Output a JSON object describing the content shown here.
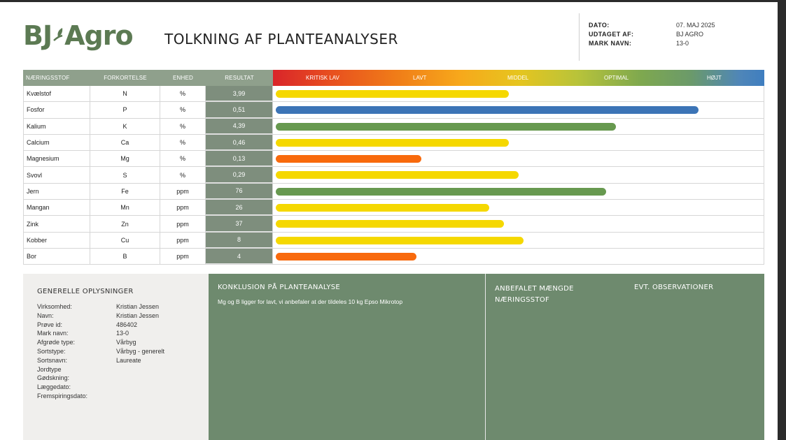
{
  "header": {
    "logo": "BJ Agro",
    "title": "TOLKNING AF PLANTEANALYSER"
  },
  "meta": [
    {
      "label": "DATO:",
      "value": "07. MAJ 2025"
    },
    {
      "label": "UDTAGET AF:",
      "value": "BJ AGRO"
    },
    {
      "label": "MARK NAVN:",
      "value": "13-0"
    }
  ],
  "table": {
    "headers": [
      "NÆRINGSSTOF",
      "FORKORTELSE",
      "ENHED",
      "RESULTAT"
    ],
    "scale_labels": [
      "KRITISK LAV",
      "LAVT",
      "MIDDEL",
      "OPTIMAL",
      "HØJT"
    ],
    "rows": [
      {
        "name": "Kvælstof",
        "abbr": "N",
        "unit": "%",
        "result": "3,99",
        "level": 0.48,
        "color": "#f5d800"
      },
      {
        "name": "Fosfor",
        "abbr": "P",
        "unit": "%",
        "result": "0,51",
        "level": 0.87,
        "color": "#3c74b6"
      },
      {
        "name": "Kalium",
        "abbr": "K",
        "unit": "%",
        "result": "4,39",
        "level": 0.7,
        "color": "#67994f"
      },
      {
        "name": "Calcium",
        "abbr": "Ca",
        "unit": "%",
        "result": "0,46",
        "level": 0.48,
        "color": "#f5d800"
      },
      {
        "name": "Magnesium",
        "abbr": "Mg",
        "unit": "%",
        "result": "0,13",
        "level": 0.3,
        "color": "#f86a0d"
      },
      {
        "name": "Svovl",
        "abbr": "S",
        "unit": "%",
        "result": "0,29",
        "level": 0.5,
        "color": "#f5d800"
      },
      {
        "name": "Jern",
        "abbr": "Fe",
        "unit": "ppm",
        "result": "76",
        "level": 0.68,
        "color": "#67994f"
      },
      {
        "name": "Mangan",
        "abbr": "Mn",
        "unit": "ppm",
        "result": "26",
        "level": 0.44,
        "color": "#f5d800"
      },
      {
        "name": "Zink",
        "abbr": "Zn",
        "unit": "ppm",
        "result": "37",
        "level": 0.47,
        "color": "#f5d800"
      },
      {
        "name": "Kobber",
        "abbr": "Cu",
        "unit": "ppm",
        "result": "8",
        "level": 0.51,
        "color": "#f5d800"
      },
      {
        "name": "Bor",
        "abbr": "B",
        "unit": "ppm",
        "result": "4",
        "level": 0.29,
        "color": "#f86a0d"
      }
    ]
  },
  "general": {
    "heading": "GENERELLE OPLYSNINGER",
    "fields": [
      {
        "label": "Virksomhed:",
        "value": "Kristian Jessen"
      },
      {
        "label": "Navn:",
        "value": "Kristian Jessen"
      },
      {
        "label": "Prøve id:",
        "value": "486402"
      },
      {
        "label": "Mark navn:",
        "value": "13-0"
      },
      {
        "label": "Afgrøde type:",
        "value": "Vårbyg"
      },
      {
        "label": "Sortstype:",
        "value": "Vårbyg - generelt"
      },
      {
        "label": "Sortsnavn:",
        "value": "Laureate"
      },
      {
        "label": "Jordtype",
        "value": ""
      },
      {
        "label": "Gødskning:",
        "value": ""
      },
      {
        "label": "Læggedato:",
        "value": ""
      },
      {
        "label": "Fremspiringsdato:",
        "value": ""
      }
    ]
  },
  "conclusion": {
    "heading": "KONKLUSION PÅ PLANTEANALYSE",
    "text": "Mg og B ligger for lavt, vi anbefaler at der tildeles 10 kg Epso Mikrotop"
  },
  "recommendation": {
    "amount_heading": "ANBEFALET MÆNGDE NÆRINGSSTOF",
    "observations_heading": "EVT. OBSERVATIONER"
  }
}
